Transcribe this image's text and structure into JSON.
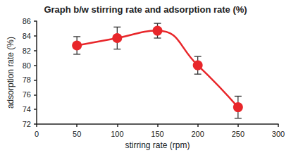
{
  "chart_data": {
    "type": "line",
    "title": "Graph b/w stirring rate and adsorption rate (%)",
    "x_label": "stirring rate (rpm)",
    "y_label": "adsorption rate (%)",
    "x": [
      50,
      100,
      150,
      200,
      250
    ],
    "values": [
      82.7,
      83.7,
      84.7,
      80.0,
      74.3
    ],
    "errors": [
      1.2,
      1.5,
      1.0,
      1.2,
      1.5
    ],
    "color": "#e8262a",
    "marker": "circle",
    "line_style": "solid",
    "xlim": [
      0,
      300
    ],
    "xticks": [
      0,
      50,
      100,
      150,
      200,
      250,
      300
    ],
    "ylim": [
      72,
      86
    ],
    "yticks": [
      72,
      74,
      76,
      78,
      80,
      82,
      84,
      86
    ],
    "grid": false
  }
}
